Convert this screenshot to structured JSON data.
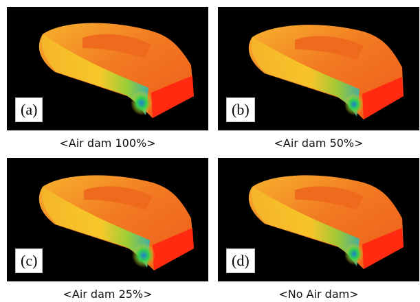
{
  "panels": [
    {
      "tag": "(a)",
      "caption": "<Air dam 100%>"
    },
    {
      "tag": "(b)",
      "caption": "<Air dam 50%>"
    },
    {
      "tag": "(c)",
      "caption": "<Air dam 25%>"
    },
    {
      "tag": "(d)",
      "caption": "<No Air dam>"
    }
  ],
  "colors": {
    "background": "#000000",
    "hot": "#ff2a10",
    "warm": "#f28a22",
    "mid": "#ffd21a",
    "cool": "#33d04a",
    "cold": "#1f7fd0"
  }
}
